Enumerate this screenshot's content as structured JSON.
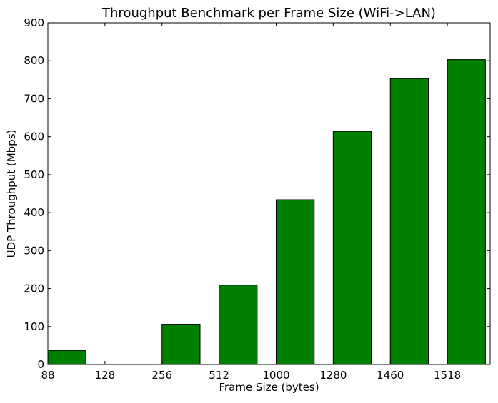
{
  "chart_data": {
    "type": "bar",
    "title": "Throughput Benchmark per Frame Size (WiFi->LAN)",
    "xlabel": "Frame Size (bytes)",
    "ylabel": "UDP Throughput (Mbps)",
    "categories": [
      "88",
      "128",
      "256",
      "512",
      "1000",
      "1280",
      "1460",
      "1518"
    ],
    "values": [
      37,
      0,
      106,
      209,
      434,
      614,
      753,
      803
    ],
    "ylim": [
      0,
      900
    ],
    "yticks": [
      0,
      100,
      200,
      300,
      400,
      500,
      600,
      700,
      800,
      900
    ],
    "grid": false,
    "legend": "none",
    "bar_color": "#008000",
    "edge_color": "#000000"
  }
}
